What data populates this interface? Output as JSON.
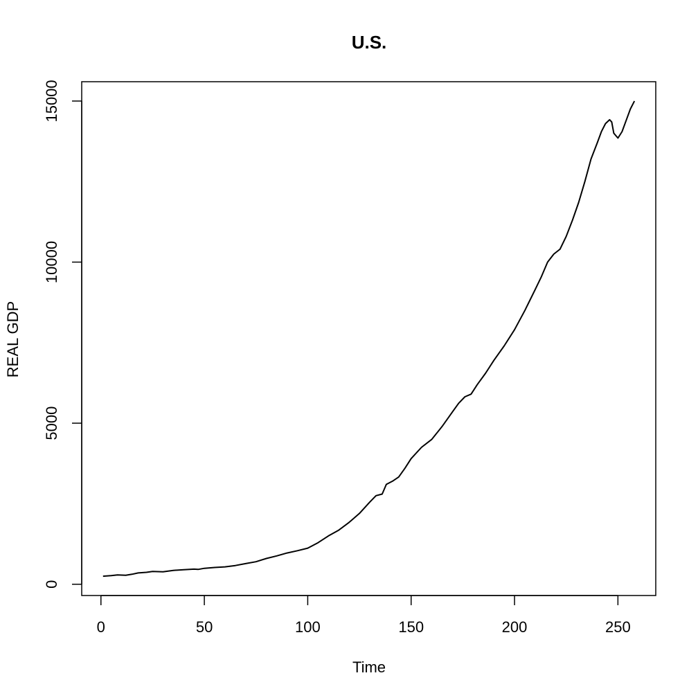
{
  "chart_data": {
    "type": "line",
    "title": "U.S.",
    "xlabel": "Time",
    "ylabel": "REAL GDP",
    "xlim": [
      -9.3,
      268.3
    ],
    "ylim": [
      -350,
      15600
    ],
    "xticks": [
      0,
      50,
      100,
      150,
      200,
      250
    ],
    "yticks": [
      0,
      5000,
      10000,
      15000
    ],
    "grid": false,
    "series": [
      {
        "points": [
          [
            1,
            250
          ],
          [
            5,
            270
          ],
          [
            8,
            290
          ],
          [
            12,
            280
          ],
          [
            15,
            310
          ],
          [
            18,
            350
          ],
          [
            22,
            370
          ],
          [
            25,
            395
          ],
          [
            30,
            385
          ],
          [
            35,
            430
          ],
          [
            40,
            450
          ],
          [
            45,
            470
          ],
          [
            47,
            460
          ],
          [
            50,
            495
          ],
          [
            55,
            520
          ],
          [
            60,
            540
          ],
          [
            65,
            580
          ],
          [
            70,
            640
          ],
          [
            75,
            700
          ],
          [
            80,
            800
          ],
          [
            85,
            880
          ],
          [
            90,
            970
          ],
          [
            95,
            1040
          ],
          [
            100,
            1120
          ],
          [
            105,
            1290
          ],
          [
            110,
            1500
          ],
          [
            115,
            1680
          ],
          [
            120,
            1920
          ],
          [
            125,
            2200
          ],
          [
            130,
            2550
          ],
          [
            133,
            2750
          ],
          [
            136,
            2800
          ],
          [
            138,
            3100
          ],
          [
            141,
            3200
          ],
          [
            144,
            3330
          ],
          [
            147,
            3600
          ],
          [
            150,
            3900
          ],
          [
            155,
            4250
          ],
          [
            160,
            4500
          ],
          [
            165,
            4900
          ],
          [
            170,
            5350
          ],
          [
            173,
            5620
          ],
          [
            176,
            5820
          ],
          [
            179,
            5900
          ],
          [
            182,
            6200
          ],
          [
            186,
            6550
          ],
          [
            190,
            6950
          ],
          [
            195,
            7400
          ],
          [
            200,
            7900
          ],
          [
            205,
            8500
          ],
          [
            210,
            9150
          ],
          [
            213,
            9550
          ],
          [
            216,
            10000
          ],
          [
            219,
            10250
          ],
          [
            222,
            10400
          ],
          [
            225,
            10800
          ],
          [
            228,
            11300
          ],
          [
            231,
            11850
          ],
          [
            234,
            12500
          ],
          [
            237,
            13200
          ],
          [
            240,
            13700
          ],
          [
            242,
            14050
          ],
          [
            244,
            14300
          ],
          [
            246,
            14420
          ],
          [
            247,
            14350
          ],
          [
            248,
            14000
          ],
          [
            250,
            13850
          ],
          [
            252,
            14050
          ],
          [
            254,
            14400
          ],
          [
            256,
            14750
          ],
          [
            258,
            15000
          ]
        ]
      }
    ]
  }
}
